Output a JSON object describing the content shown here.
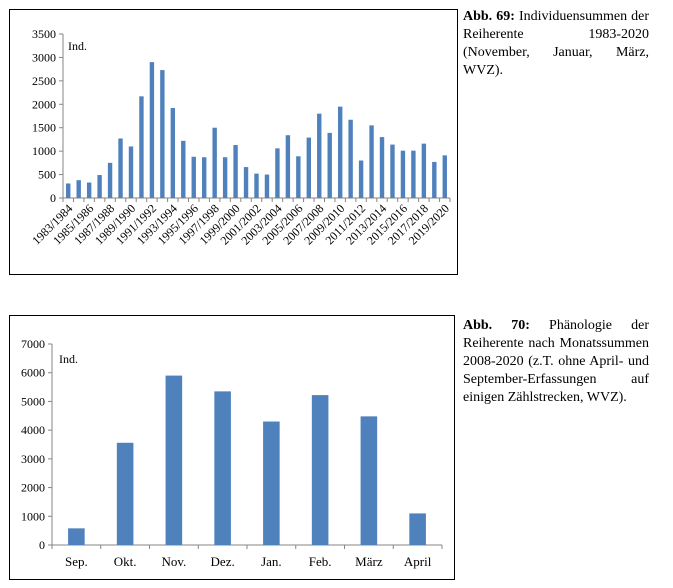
{
  "chart_data": [
    {
      "type": "bar",
      "unit_label": "Ind.",
      "categories": [
        "1983/1984",
        "1984/1985",
        "1985/1986",
        "1986/1987",
        "1987/1988",
        "1988/1989",
        "1989/1990",
        "1990/1991",
        "1991/1992",
        "1992/1993",
        "1993/1994",
        "1994/1995",
        "1995/1996",
        "1996/1997",
        "1997/1998",
        "1998/1999",
        "1999/2000",
        "2000/2001",
        "2001/2002",
        "2002/2003",
        "2003/2004",
        "2004/2005",
        "2005/2006",
        "2006/2007",
        "2007/2008",
        "2008/2009",
        "2009/2010",
        "2010/2011",
        "2011/2012",
        "2012/2013",
        "2013/2014",
        "2014/2015",
        "2015/2016",
        "2016/2017",
        "2017/2018",
        "2018/2019",
        "2019/2020"
      ],
      "visible_tick_labels": [
        "1983/1984",
        "1985/1986",
        "1987/1988",
        "1989/1990",
        "1991/1992",
        "1993/1994",
        "1995/1996",
        "1997/1998",
        "1999/2000",
        "2001/2002",
        "2003/2004",
        "2005/2006",
        "2007/2008",
        "2009/2010",
        "2011/2012",
        "2013/2014",
        "2015/2016",
        "2017/2018",
        "2019/2020"
      ],
      "values": [
        310,
        380,
        330,
        490,
        750,
        1270,
        1100,
        2170,
        2900,
        2730,
        1920,
        1220,
        880,
        870,
        1500,
        870,
        1130,
        660,
        520,
        500,
        1060,
        1340,
        890,
        1290,
        1800,
        1390,
        1950,
        1670,
        800,
        1550,
        1300,
        1140,
        1010,
        1010,
        1160,
        770,
        910
      ],
      "ylim": [
        0,
        3500
      ],
      "yticks": [
        0,
        500,
        1000,
        1500,
        2000,
        2500,
        3000,
        3500
      ],
      "grid": false,
      "color": "#4f81bd"
    },
    {
      "type": "bar",
      "unit_label": "Ind.",
      "categories": [
        "Sep.",
        "Okt.",
        "Nov.",
        "Dez.",
        "Jan.",
        "Feb.",
        "März",
        "April"
      ],
      "values": [
        580,
        3560,
        5900,
        5350,
        4300,
        5220,
        4480,
        1100
      ],
      "ylim": [
        0,
        7000
      ],
      "yticks": [
        0,
        1000,
        2000,
        3000,
        4000,
        5000,
        6000,
        7000
      ],
      "grid": false,
      "color": "#4f81bd"
    }
  ],
  "captions": {
    "fig69_label": "Abb. 69:",
    "fig69_text": "Individuensummen der Reiherente 1983-2020 (November, Januar, März, WVZ).",
    "fig70_label": "Abb. 70:",
    "fig70_text": "Phänologie der Reiherente nach Monatssummen 2008-2020 (z.T. ohne April- und September-Erfassungen auf einigen Zählstrecken, WVZ)."
  }
}
